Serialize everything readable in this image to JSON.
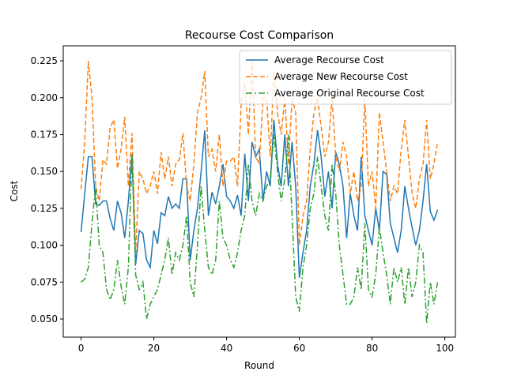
{
  "chart_data": {
    "type": "line",
    "title": "Recourse Cost Comparison",
    "xlabel": "Round",
    "ylabel": "Cost",
    "x": [
      0,
      1,
      2,
      3,
      4,
      5,
      6,
      7,
      8,
      9,
      10,
      11,
      12,
      13,
      14,
      15,
      16,
      17,
      18,
      19,
      20,
      21,
      22,
      23,
      24,
      25,
      26,
      27,
      28,
      29,
      30,
      31,
      32,
      33,
      34,
      35,
      36,
      37,
      38,
      39,
      40,
      41,
      42,
      43,
      44,
      45,
      46,
      47,
      48,
      49,
      50,
      51,
      52,
      53,
      54,
      55,
      56,
      57,
      58,
      59,
      60,
      61,
      62,
      63,
      64,
      65,
      66,
      67,
      68,
      69,
      70,
      71,
      72,
      73,
      74,
      75,
      76,
      77,
      78,
      79,
      80,
      81,
      82,
      83,
      84,
      85,
      86,
      87,
      88,
      89,
      90,
      91,
      92,
      93,
      94,
      95,
      96,
      97,
      98
    ],
    "series": [
      {
        "name": "Average Recourse Cost",
        "color": "#1f77b4",
        "dash": "solid",
        "values": [
          0.109,
          0.135,
          0.16,
          0.16,
          0.128,
          0.127,
          0.13,
          0.13,
          0.118,
          0.11,
          0.13,
          0.122,
          0.105,
          0.13,
          0.162,
          0.087,
          0.11,
          0.108,
          0.09,
          0.085,
          0.11,
          0.101,
          0.122,
          0.12,
          0.133,
          0.125,
          0.128,
          0.125,
          0.145,
          0.145,
          0.09,
          0.11,
          0.125,
          0.15,
          0.178,
          0.12,
          0.136,
          0.128,
          0.14,
          0.155,
          0.133,
          0.13,
          0.125,
          0.134,
          0.12,
          0.162,
          0.13,
          0.17,
          0.16,
          0.165,
          0.13,
          0.15,
          0.14,
          0.185,
          0.155,
          0.14,
          0.175,
          0.14,
          0.17,
          0.14,
          0.078,
          0.095,
          0.11,
          0.14,
          0.155,
          0.178,
          0.16,
          0.133,
          0.15,
          0.125,
          0.163,
          0.155,
          0.14,
          0.105,
          0.135,
          0.12,
          0.11,
          0.16,
          0.12,
          0.11,
          0.1,
          0.125,
          0.11,
          0.15,
          0.148,
          0.115,
          0.105,
          0.095,
          0.11,
          0.14,
          0.125,
          0.112,
          0.1,
          0.11,
          0.13,
          0.155,
          0.123,
          0.117,
          0.124
        ]
      },
      {
        "name": "Average New Recourse Cost",
        "color": "#ff7f0e",
        "dash": "dashed",
        "values": [
          0.138,
          0.17,
          0.225,
          0.2,
          0.14,
          0.13,
          0.158,
          0.155,
          0.18,
          0.185,
          0.152,
          0.165,
          0.187,
          0.14,
          0.176,
          0.095,
          0.15,
          0.145,
          0.135,
          0.14,
          0.15,
          0.135,
          0.163,
          0.145,
          0.16,
          0.14,
          0.155,
          0.158,
          0.176,
          0.14,
          0.13,
          0.155,
          0.19,
          0.2,
          0.218,
          0.16,
          0.165,
          0.15,
          0.175,
          0.14,
          0.157,
          0.157,
          0.16,
          0.14,
          0.195,
          0.21,
          0.175,
          0.225,
          0.16,
          0.155,
          0.2,
          0.2,
          0.16,
          0.218,
          0.19,
          0.175,
          0.2,
          0.155,
          0.2,
          0.19,
          0.1,
          0.12,
          0.13,
          0.165,
          0.19,
          0.2,
          0.18,
          0.16,
          0.17,
          0.2,
          0.16,
          0.15,
          0.17,
          0.16,
          0.135,
          0.15,
          0.13,
          0.14,
          0.2,
          0.14,
          0.15,
          0.125,
          0.19,
          0.17,
          0.15,
          0.13,
          0.14,
          0.135,
          0.165,
          0.185,
          0.16,
          0.135,
          0.125,
          0.145,
          0.155,
          0.185,
          0.145,
          0.155,
          0.17
        ]
      },
      {
        "name": "Average Original Recourse Cost",
        "color": "#2ca02c",
        "dash": "dashdot",
        "values": [
          0.075,
          0.077,
          0.085,
          0.115,
          0.14,
          0.1,
          0.095,
          0.07,
          0.063,
          0.07,
          0.09,
          0.072,
          0.06,
          0.085,
          0.162,
          0.08,
          0.07,
          0.075,
          0.05,
          0.06,
          0.065,
          0.07,
          0.08,
          0.09,
          0.105,
          0.08,
          0.095,
          0.09,
          0.1,
          0.12,
          0.075,
          0.065,
          0.1,
          0.14,
          0.11,
          0.085,
          0.08,
          0.09,
          0.13,
          0.105,
          0.1,
          0.09,
          0.085,
          0.095,
          0.11,
          0.12,
          0.155,
          0.13,
          0.12,
          0.135,
          0.13,
          0.14,
          0.145,
          0.175,
          0.15,
          0.13,
          0.145,
          0.175,
          0.12,
          0.065,
          0.055,
          0.085,
          0.1,
          0.125,
          0.135,
          0.16,
          0.14,
          0.12,
          0.11,
          0.155,
          0.135,
          0.1,
          0.08,
          0.06,
          0.06,
          0.065,
          0.085,
          0.07,
          0.115,
          0.07,
          0.065,
          0.08,
          0.112,
          0.095,
          0.08,
          0.06,
          0.085,
          0.075,
          0.085,
          0.06,
          0.085,
          0.065,
          0.075,
          0.1,
          0.095,
          0.047,
          0.075,
          0.06,
          0.075
        ]
      }
    ],
    "xlim": [
      -4.9,
      102.9
    ],
    "xticks": [
      0,
      20,
      40,
      60,
      80,
      100
    ],
    "ylim": [
      0.0377,
      0.2352
    ],
    "yticks": [
      {
        "value": 0.05,
        "label": "0.050"
      },
      0.075,
      {
        "value": 0.1,
        "label": "0.100"
      },
      0.125,
      {
        "value": 0.15,
        "label": "0.150"
      },
      0.175,
      {
        "value": 0.2,
        "label": "0.200"
      },
      0.225
    ],
    "legend": "upper right"
  }
}
